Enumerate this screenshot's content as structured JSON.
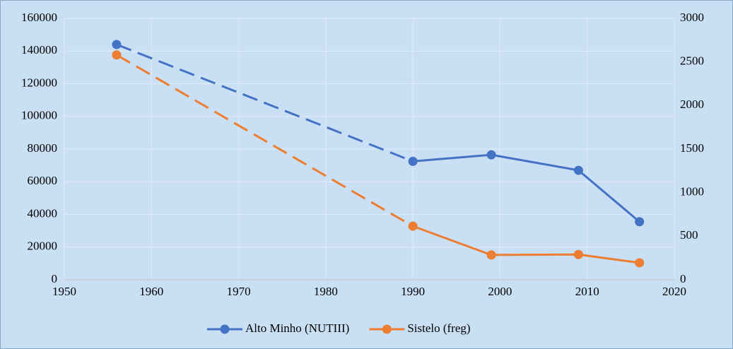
{
  "chart_data": {
    "type": "line",
    "x": [
      1956,
      1990,
      1999,
      2009,
      2016
    ],
    "series": [
      {
        "name": "Alto Minho (NUTIII)",
        "color": "#4472c4",
        "values": [
          144000,
          72500,
          76500,
          67000,
          35500
        ],
        "axis": "y",
        "dashed_segments": [
          0
        ]
      },
      {
        "name": "Sistelo (freg)",
        "color": "#ed7d31",
        "values": [
          2580,
          615,
          285,
          290,
          195
        ],
        "axis": "y2",
        "dashed_segments": [
          0
        ]
      }
    ],
    "xlim": [
      1950,
      2020
    ],
    "xticks": [
      1950,
      1960,
      1970,
      1980,
      1990,
      2000,
      2010,
      2020
    ],
    "ylim": [
      0,
      160000
    ],
    "yticks": [
      0,
      20000,
      40000,
      60000,
      80000,
      100000,
      120000,
      140000,
      160000
    ],
    "y2lim": [
      0,
      3000
    ],
    "y2ticks": [
      0,
      500,
      1000,
      1500,
      2000,
      2500,
      3000
    ],
    "grid": true,
    "legend": "bottom"
  }
}
